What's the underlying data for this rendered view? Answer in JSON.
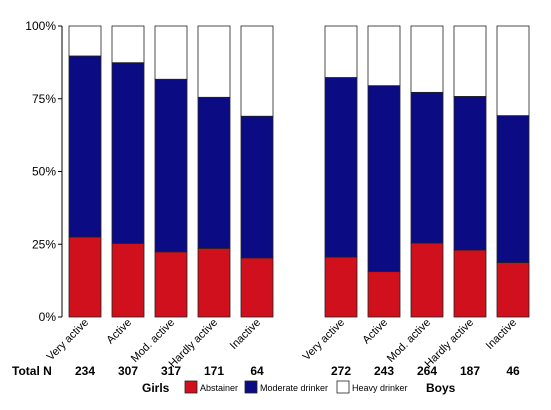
{
  "chart_data": {
    "type": "bar",
    "stacked": "percent",
    "ylim": [
      0,
      100
    ],
    "yticks": [
      {
        "value": 0,
        "label": "0%"
      },
      {
        "value": 25,
        "label": "25%"
      },
      {
        "value": 50,
        "label": "50%"
      },
      {
        "value": 75,
        "label": "75%"
      },
      {
        "value": 100,
        "label": "100%"
      }
    ],
    "grid": false,
    "legend_position": "bottom",
    "groups": [
      {
        "name": "Girls",
        "categories": [
          "Very active",
          "Active",
          "Mod. active",
          "Hardly active",
          "Inactive"
        ],
        "totals": [
          "234",
          "307",
          "317",
          "171",
          "64"
        ],
        "series": [
          {
            "name": "Abstainer",
            "values": [
              27.5,
              25.3,
              22.4,
              23.6,
              20.3
            ]
          },
          {
            "name": "Moderate drinker",
            "values": [
              62.2,
              62.1,
              59.3,
              51.9,
              48.7
            ]
          },
          {
            "name": "Heavy drinker",
            "values": [
              10.3,
              12.6,
              18.3,
              24.5,
              31.0
            ]
          }
        ]
      },
      {
        "name": "Boys",
        "categories": [
          "Very active",
          "Active",
          "Mod. active",
          "Hardly active",
          "Inactive"
        ],
        "totals": [
          "272",
          "243",
          "264",
          "187",
          "46"
        ],
        "series": [
          {
            "name": "Abstainer",
            "values": [
              20.6,
              15.6,
              25.4,
              23.0,
              18.7
            ]
          },
          {
            "name": "Moderate drinker",
            "values": [
              61.7,
              63.9,
              51.8,
              52.8,
              50.5
            ]
          },
          {
            "name": "Heavy drinker",
            "values": [
              17.7,
              20.5,
              22.8,
              24.2,
              30.8
            ]
          }
        ]
      }
    ],
    "total_label": "Total N",
    "colors": {
      "Abstainer": "#d0101c",
      "Moderate drinker": "#0b0b83",
      "Heavy drinker": "#ffffff"
    }
  }
}
